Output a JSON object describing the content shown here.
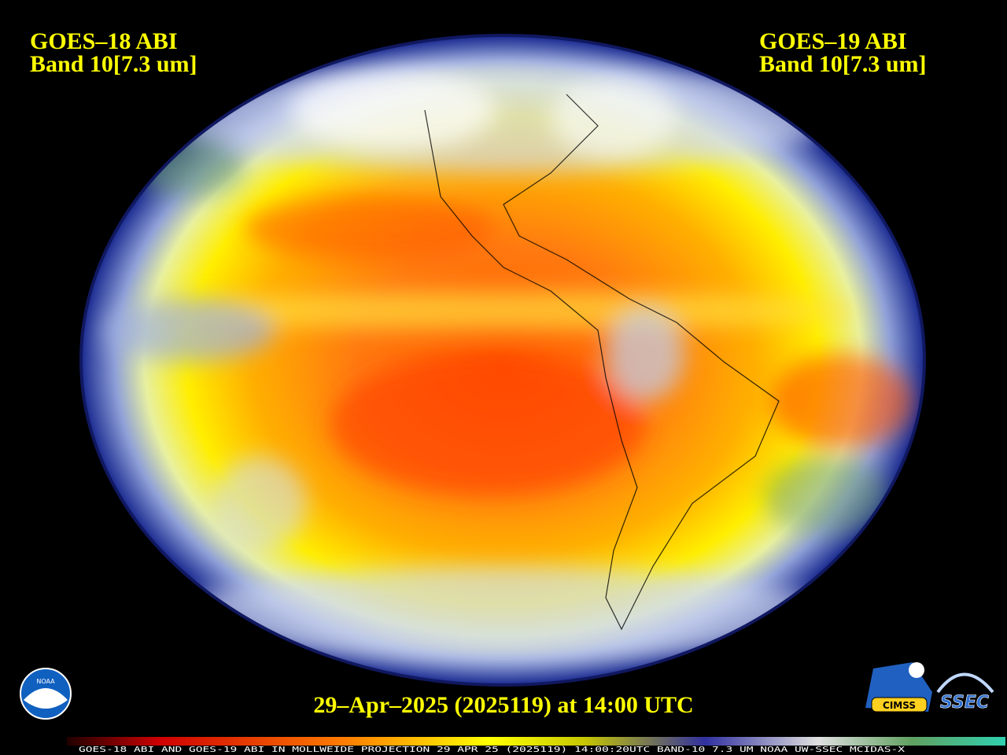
{
  "header": {
    "left": [
      "GOES–18 ABI",
      "Band 10[7.3 um]"
    ],
    "right": [
      "GOES–19 ABI",
      "Band 10[7.3 um]"
    ]
  },
  "timestamp": "29–Apr–2025 (2025119) at 14:00 UTC",
  "footer": "GOES-18 ABI AND GOES-19 ABI IN MOLLWEIDE PROJECTION 29 APR 25 (2025119) 14:00:20UTC BAND-10 7.3 UM NOAA UW-SSEC MCIDAS-X",
  "logos": {
    "noaa": "NOAA",
    "cimss": "CIMSS",
    "ssec": "SSEC"
  }
}
